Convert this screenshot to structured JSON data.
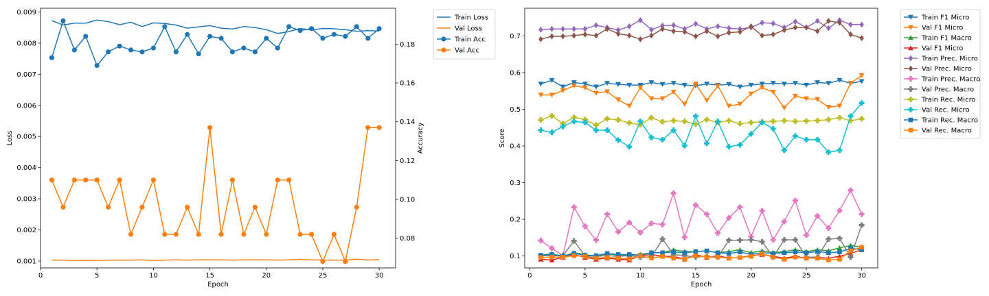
{
  "chart_data": [
    {
      "type": "line",
      "x": [
        1,
        2,
        3,
        4,
        5,
        6,
        7,
        8,
        9,
        10,
        11,
        12,
        13,
        14,
        15,
        16,
        17,
        18,
        19,
        20,
        21,
        22,
        23,
        24,
        25,
        26,
        27,
        28,
        29,
        30
      ],
      "xlabel": "Epoch",
      "ylabel": "Loss",
      "y2label": "Accuracy",
      "xlim": [
        0,
        31.45
      ],
      "ylim": [
        0.00078,
        0.00912
      ],
      "y2lim": [
        0.0647,
        0.1985
      ],
      "xticks": [
        0,
        5,
        10,
        15,
        20,
        25,
        30
      ],
      "xtick_labels": [
        "0",
        "5",
        "10",
        "15",
        "20",
        "25",
        "30"
      ],
      "yticks": [
        0.001,
        0.002,
        0.003,
        0.004,
        0.005,
        0.006,
        0.007,
        0.008,
        0.009
      ],
      "ytick_labels": [
        "0.001",
        "0.002",
        "0.003",
        "0.004",
        "0.005",
        "0.006",
        "0.007",
        "0.008",
        "0.009"
      ],
      "y2ticks": [
        0.08,
        0.1,
        0.12,
        0.14,
        0.16,
        0.18
      ],
      "y2tick_labels": [
        "0.08",
        "0.10",
        "0.12",
        "0.14",
        "0.16",
        "0.18"
      ],
      "legend_position": "outside-right-top",
      "series": [
        {
          "name": "Train Loss",
          "axis": "left",
          "color": "#1f77b4",
          "marker": "none",
          "values": [
            0.00872,
            0.00858,
            0.00864,
            0.00864,
            0.00874,
            0.00869,
            0.00859,
            0.00867,
            0.00853,
            0.00865,
            0.00863,
            0.00858,
            0.00848,
            0.00852,
            0.00856,
            0.00848,
            0.00845,
            0.00853,
            0.0085,
            0.00843,
            0.00831,
            0.00837,
            0.00847,
            0.00842,
            0.00847,
            0.00846,
            0.00843,
            0.00838,
            0.0084,
            0.00839
          ]
        },
        {
          "name": "Val Loss",
          "axis": "left",
          "color": "#ff7f0e",
          "marker": "none",
          "values": [
            0.00103,
            0.00103,
            0.00102,
            0.00102,
            0.00102,
            0.00103,
            0.00103,
            0.00103,
            0.00104,
            0.00102,
            0.00103,
            0.00104,
            0.00103,
            0.00104,
            0.00104,
            0.00104,
            0.00103,
            0.00104,
            0.00104,
            0.00104,
            0.00103,
            0.00104,
            0.00105,
            0.00104,
            0.00103,
            0.00103,
            0.00103,
            0.00106,
            0.00103,
            0.00105
          ]
        },
        {
          "name": "Train Acc",
          "axis": "right",
          "color": "#1f77b4",
          "marker": "circle",
          "values": [
            0.173,
            0.192,
            0.177,
            0.184,
            0.169,
            0.176,
            0.179,
            0.177,
            0.176,
            0.178,
            0.189,
            0.176,
            0.185,
            0.175,
            0.184,
            0.183,
            0.176,
            0.178,
            0.176,
            0.183,
            0.178,
            0.189,
            0.187,
            0.188,
            0.183,
            0.185,
            0.184,
            0.189,
            0.183,
            0.188
          ]
        },
        {
          "name": "Val Acc",
          "axis": "right",
          "color": "#ff7f0e",
          "marker": "circle",
          "values": [
            0.11,
            0.096,
            0.11,
            0.11,
            0.11,
            0.096,
            0.11,
            0.082,
            0.096,
            0.11,
            0.082,
            0.082,
            0.096,
            0.082,
            0.137,
            0.082,
            0.11,
            0.082,
            0.096,
            0.082,
            0.11,
            0.11,
            0.082,
            0.082,
            0.068,
            0.082,
            0.068,
            0.096,
            0.137,
            0.137
          ]
        }
      ]
    },
    {
      "type": "line",
      "x": [
        1,
        2,
        3,
        4,
        5,
        6,
        7,
        8,
        9,
        10,
        11,
        12,
        13,
        14,
        15,
        16,
        17,
        18,
        19,
        20,
        21,
        22,
        23,
        24,
        25,
        26,
        27,
        28,
        29,
        30
      ],
      "xlabel": "Epoch",
      "ylabel": "Score",
      "xlim": [
        -0.45,
        31.45
      ],
      "ylim": [
        0.0675,
        0.7755
      ],
      "xticks": [
        0,
        5,
        10,
        15,
        20,
        25,
        30
      ],
      "xtick_labels": [
        "0",
        "5",
        "10",
        "15",
        "20",
        "25",
        "30"
      ],
      "yticks": [
        0.1,
        0.2,
        0.3,
        0.4,
        0.5,
        0.6,
        0.7
      ],
      "ytick_labels": [
        "0.1",
        "0.2",
        "0.3",
        "0.4",
        "0.5",
        "0.6",
        "0.7"
      ],
      "legend_position": "outside-right-top",
      "series": [
        {
          "name": "Train F1 Micro",
          "color": "#1f77b4",
          "marker": "tri-down",
          "values": [
            0.569,
            0.579,
            0.561,
            0.573,
            0.569,
            0.561,
            0.571,
            0.568,
            0.566,
            0.566,
            0.573,
            0.568,
            0.571,
            0.566,
            0.564,
            0.569,
            0.566,
            0.568,
            0.561,
            0.566,
            0.569,
            0.571,
            0.569,
            0.571,
            0.566,
            0.573,
            0.571,
            0.579,
            0.571,
            0.576
          ]
        },
        {
          "name": "Val F1 Micro",
          "color": "#ff7f0e",
          "marker": "tri-down",
          "values": [
            0.539,
            0.539,
            0.551,
            0.564,
            0.559,
            0.544,
            0.548,
            0.526,
            0.509,
            0.559,
            0.529,
            0.529,
            0.547,
            0.514,
            0.569,
            0.524,
            0.564,
            0.509,
            0.514,
            0.542,
            0.559,
            0.547,
            0.504,
            0.536,
            0.529,
            0.527,
            0.506,
            0.509,
            0.571,
            0.592
          ]
        },
        {
          "name": "Train F1 Macro",
          "color": "#2ca02c",
          "marker": "tri-up",
          "values": [
            0.102,
            0.106,
            0.099,
            0.109,
            0.104,
            0.099,
            0.106,
            0.102,
            0.102,
            0.104,
            0.109,
            0.109,
            0.117,
            0.112,
            0.112,
            0.114,
            0.109,
            0.112,
            0.117,
            0.109,
            0.114,
            0.109,
            0.112,
            0.117,
            0.112,
            0.117,
            0.114,
            0.122,
            0.129,
            0.124
          ]
        },
        {
          "name": "Val F1 Micro",
          "color": "#d62728",
          "marker": "tri-up",
          "values": [
            0.091,
            0.089,
            0.096,
            0.104,
            0.096,
            0.091,
            0.094,
            0.091,
            0.089,
            0.101,
            0.104,
            0.099,
            0.099,
            0.091,
            0.104,
            0.096,
            0.101,
            0.094,
            0.096,
            0.101,
            0.104,
            0.099,
            0.094,
            0.099,
            0.094,
            0.096,
            0.094,
            0.099,
            0.107,
            0.117
          ]
        },
        {
          "name": "Train Prec. Micro",
          "color": "#9467bd",
          "marker": "diamond",
          "values": [
            0.717,
            0.719,
            0.719,
            0.719,
            0.719,
            0.729,
            0.723,
            0.716,
            0.726,
            0.743,
            0.717,
            0.728,
            0.729,
            0.719,
            0.733,
            0.719,
            0.726,
            0.721,
            0.719,
            0.723,
            0.736,
            0.734,
            0.723,
            0.739,
            0.723,
            0.741,
            0.721,
            0.743,
            0.731,
            0.731
          ]
        },
        {
          "name": "Val Prec. Micro",
          "color": "#8c564b",
          "marker": "diamond",
          "values": [
            0.691,
            0.699,
            0.699,
            0.701,
            0.704,
            0.701,
            0.719,
            0.706,
            0.701,
            0.691,
            0.701,
            0.719,
            0.713,
            0.711,
            0.699,
            0.713,
            0.699,
            0.709,
            0.711,
            0.726,
            0.701,
            0.704,
            0.716,
            0.723,
            0.723,
            0.713,
            0.741,
            0.736,
            0.704,
            0.694
          ]
        },
        {
          "name": "Train Prec. Macro",
          "color": "#e377c2",
          "marker": "plus-filled",
          "values": [
            0.142,
            0.121,
            0.101,
            0.233,
            0.181,
            0.143,
            0.214,
            0.166,
            0.191,
            0.164,
            0.189,
            0.186,
            0.271,
            0.151,
            0.239,
            0.214,
            0.162,
            0.204,
            0.233,
            0.153,
            0.223,
            0.144,
            0.194,
            0.251,
            0.157,
            0.209,
            0.176,
            0.224,
            0.279,
            0.214
          ]
        },
        {
          "name": "Val Prec. Macro",
          "color": "#7f7f7f",
          "marker": "plus-filled",
          "values": [
            0.101,
            0.101,
            0.101,
            0.141,
            0.101,
            0.099,
            0.101,
            0.099,
            0.101,
            0.097,
            0.097,
            0.146,
            0.104,
            0.101,
            0.097,
            0.099,
            0.097,
            0.143,
            0.143,
            0.144,
            0.139,
            0.097,
            0.144,
            0.144,
            0.097,
            0.097,
            0.146,
            0.148,
            0.097,
            0.184
          ]
        },
        {
          "name": "Train Rec. Micro",
          "color": "#bcbd22",
          "marker": "plus-filled",
          "values": [
            0.471,
            0.482,
            0.461,
            0.478,
            0.472,
            0.457,
            0.474,
            0.471,
            0.463,
            0.458,
            0.477,
            0.466,
            0.469,
            0.467,
            0.459,
            0.472,
            0.464,
            0.469,
            0.461,
            0.464,
            0.466,
            0.467,
            0.469,
            0.467,
            0.468,
            0.469,
            0.472,
            0.477,
            0.469,
            0.474
          ]
        },
        {
          "name": "Val Rec. Micro",
          "color": "#17becf",
          "marker": "plus-filled",
          "values": [
            0.443,
            0.437,
            0.453,
            0.467,
            0.464,
            0.443,
            0.443,
            0.416,
            0.398,
            0.467,
            0.423,
            0.417,
            0.443,
            0.401,
            0.481,
            0.407,
            0.467,
            0.398,
            0.403,
            0.433,
            0.464,
            0.447,
            0.388,
            0.427,
            0.417,
            0.417,
            0.383,
            0.388,
            0.481,
            0.517
          ]
        },
        {
          "name": "Train Rec. Macro",
          "color": "#1f77b4",
          "marker": "square",
          "values": [
            0.102,
            0.104,
            0.099,
            0.107,
            0.102,
            0.101,
            0.107,
            0.104,
            0.104,
            0.102,
            0.109,
            0.109,
            0.111,
            0.109,
            0.112,
            0.114,
            0.109,
            0.107,
            0.111,
            0.104,
            0.109,
            0.107,
            0.109,
            0.111,
            0.109,
            0.112,
            0.109,
            0.111,
            0.121,
            0.117
          ]
        },
        {
          "name": "Val Rec. Macro",
          "color": "#ff7f0e",
          "marker": "square",
          "values": [
            0.096,
            0.097,
            0.097,
            0.101,
            0.099,
            0.094,
            0.096,
            0.094,
            0.092,
            0.101,
            0.094,
            0.099,
            0.094,
            0.091,
            0.101,
            0.097,
            0.097,
            0.094,
            0.096,
            0.099,
            0.106,
            0.097,
            0.091,
            0.097,
            0.094,
            0.094,
            0.089,
            0.091,
            0.114,
            0.124
          ]
        }
      ]
    }
  ]
}
